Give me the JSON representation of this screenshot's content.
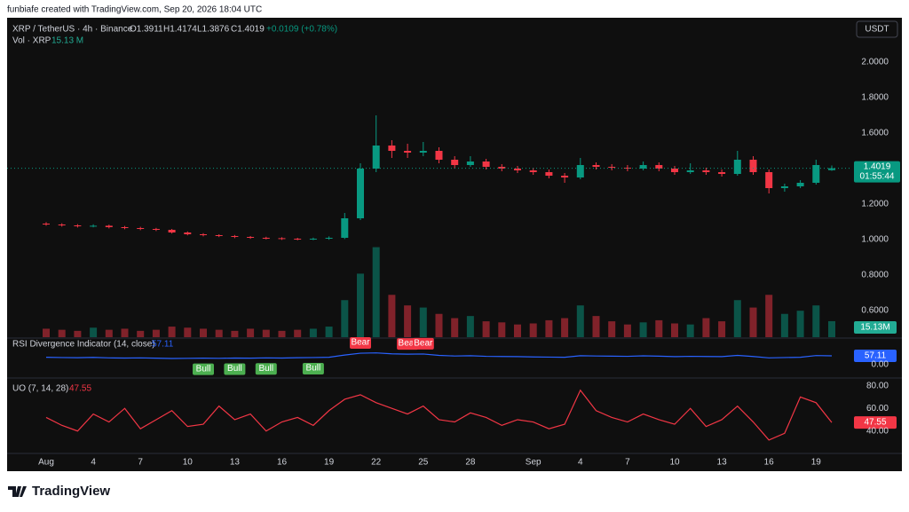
{
  "header": {
    "credit": "funbiafe created with TradingView.com, Sep 20, 2026 18:04 UTC",
    "logo": "TradingView"
  },
  "legend": {
    "symbol": "XRP / TetherUS · 4h · Binance",
    "open": "O1.3911",
    "high": "H1.4174",
    "low": "L1.3876",
    "close": "C1.4019",
    "change": "+0.0109 (+0.78%)",
    "volume_name": "Vol · XRP",
    "volume_value": "15.13 M"
  },
  "currency": "USDT",
  "price_tag": {
    "countdown": "01:55:44"
  },
  "chart_data": [
    {
      "type": "candlestick",
      "name": "XRP / TetherUS",
      "categories": [
        "Aug",
        null,
        null,
        "4",
        null,
        null,
        "7",
        null,
        null,
        "10",
        null,
        null,
        "13",
        null,
        null,
        "16",
        null,
        null,
        "19",
        null,
        null,
        "22",
        null,
        null,
        "25",
        null,
        null,
        "28",
        null,
        null,
        null,
        "Sep",
        null,
        null,
        "4",
        null,
        null,
        "7",
        null,
        null,
        "10",
        null,
        null,
        "13",
        null,
        null,
        "16",
        null,
        null,
        "19",
        null
      ],
      "open": [
        1.09,
        1.085,
        1.08,
        1.075,
        1.078,
        1.07,
        1.065,
        1.06,
        1.055,
        1.04,
        1.03,
        1.025,
        1.02,
        1.015,
        1.01,
        1.008,
        1.005,
        1.002,
        1.005,
        1.01,
        1.12,
        1.4,
        1.53,
        1.5,
        1.49,
        1.5,
        1.45,
        1.42,
        1.44,
        1.41,
        1.4,
        1.39,
        1.38,
        1.36,
        1.35,
        1.42,
        1.41,
        1.405,
        1.4,
        1.42,
        1.4,
        1.38,
        1.39,
        1.38,
        1.37,
        1.45,
        1.38,
        1.29,
        1.3,
        1.32,
        1.3911
      ],
      "high": [
        1.098,
        1.092,
        1.087,
        1.086,
        1.084,
        1.077,
        1.072,
        1.066,
        1.06,
        1.046,
        1.036,
        1.03,
        1.026,
        1.02,
        1.016,
        1.013,
        1.01,
        1.011,
        1.018,
        1.15,
        1.43,
        1.7,
        1.56,
        1.54,
        1.55,
        1.52,
        1.47,
        1.47,
        1.455,
        1.425,
        1.415,
        1.405,
        1.395,
        1.375,
        1.46,
        1.435,
        1.425,
        1.42,
        1.44,
        1.435,
        1.415,
        1.43,
        1.405,
        1.395,
        1.5,
        1.47,
        1.395,
        1.315,
        1.335,
        1.45,
        1.4174
      ],
      "low": [
        1.078,
        1.073,
        1.068,
        1.069,
        1.063,
        1.058,
        1.053,
        1.048,
        1.034,
        1.024,
        1.018,
        1.014,
        1.008,
        1.004,
        1.001,
        0.998,
        0.996,
        0.997,
        0.999,
        1.003,
        1.11,
        1.38,
        1.46,
        1.46,
        1.47,
        1.43,
        1.4,
        1.41,
        1.395,
        1.385,
        1.375,
        1.365,
        1.345,
        1.32,
        1.34,
        1.395,
        1.39,
        1.385,
        1.39,
        1.385,
        1.365,
        1.37,
        1.365,
        1.355,
        1.36,
        1.365,
        1.26,
        1.27,
        1.29,
        1.31,
        1.3876
      ],
      "close": [
        1.085,
        1.08,
        1.075,
        1.078,
        1.07,
        1.065,
        1.06,
        1.055,
        1.04,
        1.03,
        1.025,
        1.02,
        1.015,
        1.01,
        1.008,
        1.005,
        1.002,
        1.005,
        1.01,
        1.12,
        1.4,
        1.53,
        1.5,
        1.49,
        1.5,
        1.45,
        1.42,
        1.44,
        1.41,
        1.4,
        1.39,
        1.38,
        1.36,
        1.35,
        1.42,
        1.41,
        1.405,
        1.4,
        1.42,
        1.4,
        1.38,
        1.39,
        1.38,
        1.37,
        1.45,
        1.38,
        1.29,
        1.3,
        1.32,
        1.42,
        1.4019
      ],
      "close_labels": {
        "50": "1.4019"
      },
      "ylim": [
        0.45,
        2.24
      ],
      "yticks": [
        {
          "value": 0.6,
          "label": "0.6000"
        },
        {
          "value": 0.8,
          "label": "0.8000"
        },
        {
          "value": 1,
          "label": "1.0000"
        },
        {
          "value": 1.2,
          "label": "1.2000"
        },
        {
          "value": 1.6,
          "label": "1.6000"
        },
        {
          "value": 1.8,
          "label": "1.8000"
        },
        {
          "value": 2,
          "label": "2.0000"
        }
      ],
      "up_color": "#089981",
      "down_color": "#f23645",
      "grid": false
    },
    {
      "type": "bar",
      "name": "Vol · XRP",
      "values": [
        8,
        7,
        6,
        9,
        7,
        8,
        6,
        7,
        10,
        9,
        8,
        7,
        6,
        8,
        7,
        6,
        7,
        8,
        10,
        35,
        60,
        85,
        40,
        30,
        28,
        22,
        18,
        20,
        15,
        14,
        12,
        13,
        16,
        18,
        30,
        20,
        15,
        12,
        14,
        16,
        13,
        12,
        18,
        15,
        35,
        28,
        40,
        22,
        25,
        30,
        15.13
      ],
      "value_labels": {
        "50": "15.13M"
      },
      "ylim": [
        0,
        300
      ],
      "up_color": "#089981",
      "down_color": "#f23645"
    },
    {
      "type": "line",
      "title": "RSI Divergence Indicator (14, close)",
      "last_label": "57.11",
      "values": [
        48,
        46,
        45,
        47,
        44,
        43,
        44,
        42,
        40,
        41,
        42,
        41,
        43,
        42,
        44,
        43,
        45,
        46,
        48,
        62,
        74,
        76,
        70,
        68,
        69,
        60,
        56,
        58,
        54,
        53,
        52,
        50,
        49,
        48,
        58,
        56,
        55,
        54,
        57,
        55,
        52,
        54,
        53,
        52,
        60,
        53,
        44,
        46,
        48,
        59,
        57.11
      ],
      "value_labels": {
        "50": "57.11"
      },
      "ylim": [
        -80,
        160
      ],
      "yticks": [
        {
          "value": 0,
          "label": "0.00"
        }
      ],
      "color": "#2962ff",
      "bull": {
        "label": "Bull",
        "at": [
          10,
          12,
          14,
          17
        ]
      },
      "bear": {
        "label": "Bear",
        "at": [
          20,
          23,
          24
        ]
      }
    },
    {
      "type": "line",
      "title": "UO (7, 14, 28)",
      "last_label": "47.55",
      "values": [
        52,
        45,
        40,
        55,
        48,
        60,
        42,
        50,
        58,
        44,
        46,
        62,
        50,
        55,
        40,
        48,
        52,
        45,
        58,
        68,
        72,
        65,
        60,
        55,
        62,
        50,
        48,
        56,
        52,
        45,
        50,
        48,
        42,
        46,
        76,
        58,
        52,
        48,
        55,
        50,
        46,
        60,
        44,
        50,
        62,
        48,
        32,
        38,
        70,
        65,
        47.55
      ],
      "value_labels": {
        "50": "47.55"
      },
      "ylim": [
        21,
        86
      ],
      "yticks": [
        {
          "value": 40,
          "label": "40.00"
        },
        {
          "value": 60,
          "label": "60.00"
        },
        {
          "value": 80,
          "label": "80.00"
        }
      ],
      "color": "#f23645"
    }
  ]
}
